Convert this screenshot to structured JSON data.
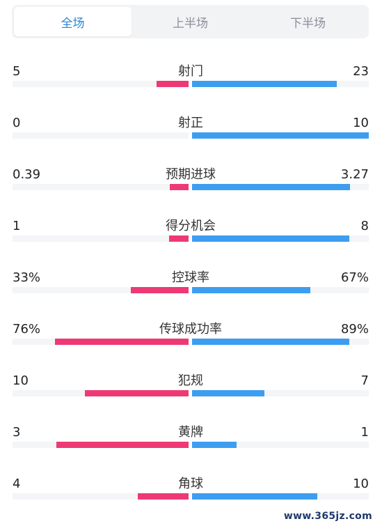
{
  "tabs": [
    {
      "label": "全场",
      "active": true
    },
    {
      "label": "上半场",
      "active": false
    },
    {
      "label": "下半场",
      "active": false
    }
  ],
  "colors": {
    "home": "#ee3a74",
    "away": "#3d9df0",
    "track": "#f4f5f7",
    "active_tab": "#2c86d8"
  },
  "stats": [
    {
      "label": "射门",
      "home": "5",
      "away": "23",
      "home_fill": 0.18,
      "away_fill": 0.82
    },
    {
      "label": "射正",
      "home": "0",
      "away": "10",
      "home_fill": 0.0,
      "away_fill": 1.0
    },
    {
      "label": "预期进球",
      "home": "0.39",
      "away": "3.27",
      "home_fill": 0.107,
      "away_fill": 0.893
    },
    {
      "label": "得分机会",
      "home": "1",
      "away": "8",
      "home_fill": 0.11,
      "away_fill": 0.89
    },
    {
      "label": "控球率",
      "home": "33%",
      "away": "67%",
      "home_fill": 0.33,
      "away_fill": 0.67
    },
    {
      "label": "传球成功率",
      "home": "76%",
      "away": "89%",
      "home_fill": 0.76,
      "away_fill": 0.89
    },
    {
      "label": "犯规",
      "home": "10",
      "away": "7",
      "home_fill": 0.59,
      "away_fill": 0.41
    },
    {
      "label": "黄牌",
      "home": "3",
      "away": "1",
      "home_fill": 0.75,
      "away_fill": 0.25
    },
    {
      "label": "角球",
      "home": "4",
      "away": "10",
      "home_fill": 0.29,
      "away_fill": 0.71
    }
  ],
  "watermark": "www.365jz.com"
}
